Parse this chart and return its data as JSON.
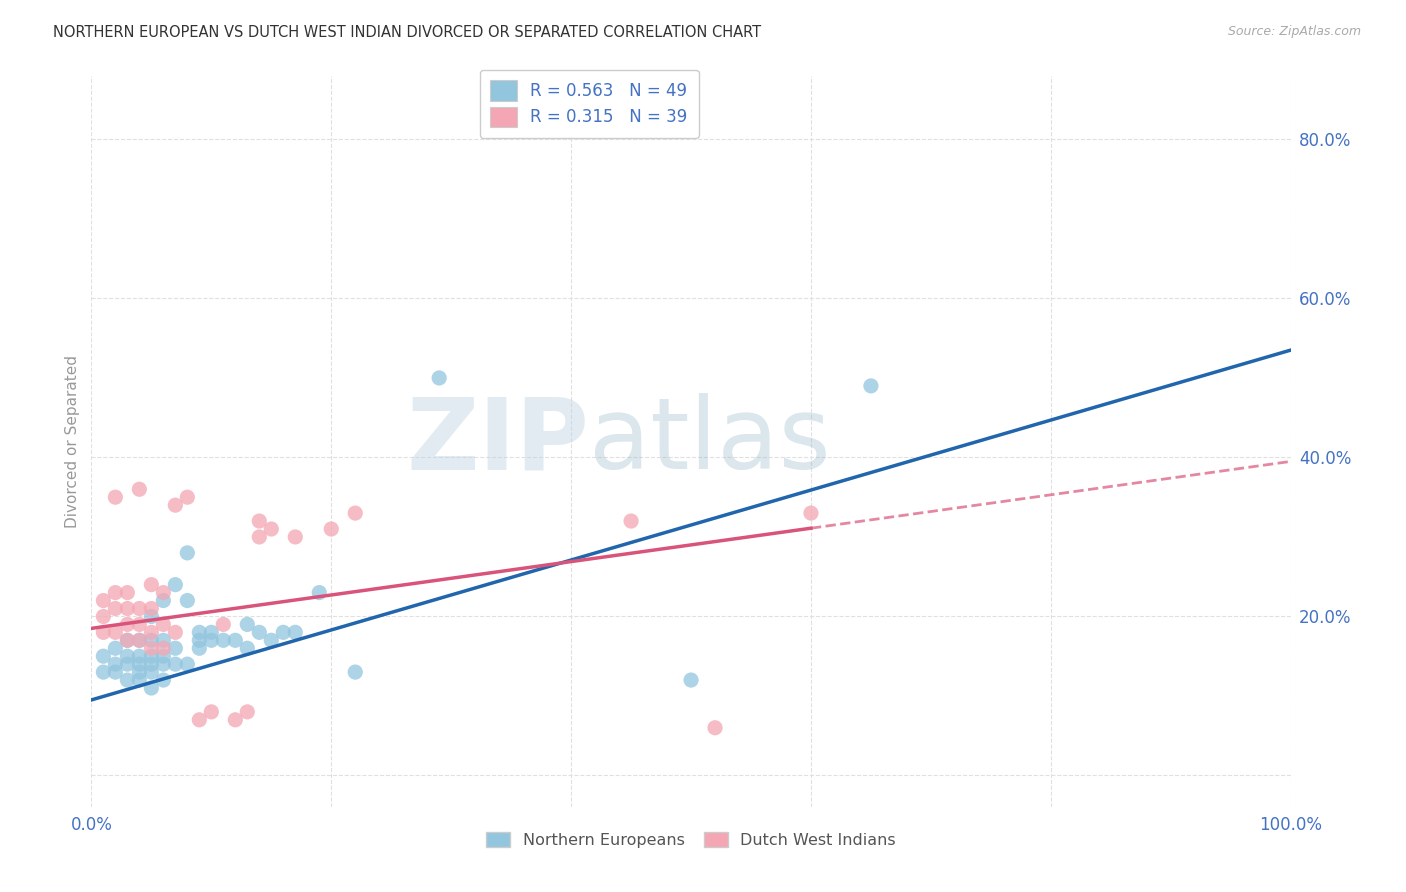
{
  "title": "NORTHERN EUROPEAN VS DUTCH WEST INDIAN DIVORCED OR SEPARATED CORRELATION CHART",
  "source": "Source: ZipAtlas.com",
  "ylabel": "Divorced or Separated",
  "watermark_zip": "ZIP",
  "watermark_atlas": "atlas",
  "legend_r1": "0.563",
  "legend_n1": "49",
  "legend_r2": "0.315",
  "legend_n2": "39",
  "legend_label1": "Northern Europeans",
  "legend_label2": "Dutch West Indians",
  "blue_color": "#92c5de",
  "pink_color": "#f4a6b4",
  "blue_line_color": "#2166ac",
  "pink_line_color": "#d9547a",
  "axis_label_color": "#4472c4",
  "note_blue_line_intercept": 0.095,
  "note_blue_line_slope": 0.44,
  "note_pink_line_intercept": 0.185,
  "note_pink_line_slope": 0.21,
  "blue_points_x": [
    0.01,
    0.01,
    0.02,
    0.02,
    0.02,
    0.03,
    0.03,
    0.03,
    0.03,
    0.04,
    0.04,
    0.04,
    0.04,
    0.04,
    0.05,
    0.05,
    0.05,
    0.05,
    0.05,
    0.05,
    0.06,
    0.06,
    0.06,
    0.06,
    0.06,
    0.07,
    0.07,
    0.07,
    0.08,
    0.08,
    0.08,
    0.09,
    0.09,
    0.09,
    0.1,
    0.1,
    0.11,
    0.12,
    0.13,
    0.13,
    0.14,
    0.15,
    0.16,
    0.17,
    0.19,
    0.22,
    0.29,
    0.5,
    0.65
  ],
  "blue_points_y": [
    0.13,
    0.15,
    0.13,
    0.14,
    0.16,
    0.12,
    0.14,
    0.15,
    0.17,
    0.12,
    0.13,
    0.14,
    0.15,
    0.17,
    0.11,
    0.13,
    0.14,
    0.15,
    0.17,
    0.2,
    0.12,
    0.14,
    0.15,
    0.17,
    0.22,
    0.14,
    0.16,
    0.24,
    0.14,
    0.22,
    0.28,
    0.16,
    0.17,
    0.18,
    0.17,
    0.18,
    0.17,
    0.17,
    0.16,
    0.19,
    0.18,
    0.17,
    0.18,
    0.18,
    0.23,
    0.13,
    0.5,
    0.12,
    0.49
  ],
  "pink_points_x": [
    0.01,
    0.01,
    0.01,
    0.02,
    0.02,
    0.02,
    0.02,
    0.03,
    0.03,
    0.03,
    0.03,
    0.04,
    0.04,
    0.04,
    0.04,
    0.05,
    0.05,
    0.05,
    0.05,
    0.06,
    0.06,
    0.06,
    0.07,
    0.07,
    0.08,
    0.09,
    0.1,
    0.11,
    0.12,
    0.13,
    0.14,
    0.14,
    0.15,
    0.17,
    0.2,
    0.22,
    0.45,
    0.52,
    0.6
  ],
  "pink_points_y": [
    0.18,
    0.2,
    0.22,
    0.18,
    0.21,
    0.23,
    0.35,
    0.17,
    0.19,
    0.21,
    0.23,
    0.17,
    0.19,
    0.21,
    0.36,
    0.16,
    0.18,
    0.21,
    0.24,
    0.16,
    0.19,
    0.23,
    0.18,
    0.34,
    0.35,
    0.07,
    0.08,
    0.19,
    0.07,
    0.08,
    0.3,
    0.32,
    0.31,
    0.3,
    0.31,
    0.33,
    0.32,
    0.06,
    0.33
  ],
  "xlim": [
    0.0,
    1.0
  ],
  "ylim": [
    -0.04,
    0.88
  ],
  "ytick_positions": [
    0.0,
    0.2,
    0.4,
    0.6,
    0.8
  ],
  "ytick_labels": [
    "",
    "20.0%",
    "40.0%",
    "60.0%",
    "80.0%"
  ],
  "xtick_positions": [
    0.0,
    0.2,
    0.4,
    0.6,
    0.8,
    1.0
  ],
  "xtick_labels": [
    "0.0%",
    "",
    "",
    "",
    "",
    "100.0%"
  ],
  "grid_color": "#e0e0e0",
  "background_color": "#ffffff"
}
